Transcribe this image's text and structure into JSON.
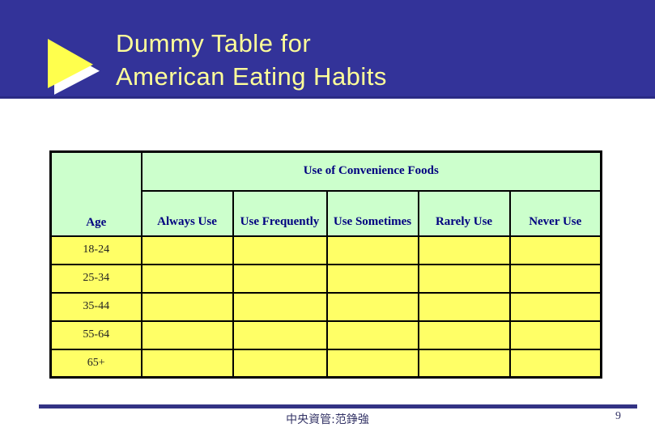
{
  "header": {
    "title_line1": "Dummy Table for",
    "title_line2": "American Eating Habits"
  },
  "table": {
    "span_header": "Use of Convenience Foods",
    "columns": [
      "Age",
      "Always Use",
      "Use Frequently",
      "Use Sometimes",
      "Rarely Use",
      "Never Use"
    ],
    "rows": [
      {
        "label": "18-24",
        "cells": [
          "",
          "",
          "",
          "",
          ""
        ]
      },
      {
        "label": "25-34",
        "cells": [
          "",
          "",
          "",
          "",
          ""
        ]
      },
      {
        "label": "35-44",
        "cells": [
          "",
          "",
          "",
          "",
          ""
        ]
      },
      {
        "label": "55-64",
        "cells": [
          "",
          "",
          "",
          "",
          ""
        ]
      },
      {
        "label": "65+",
        "cells": [
          "",
          "",
          "",
          "",
          ""
        ]
      }
    ]
  },
  "footer": {
    "credit": "中央資管:范錚強",
    "page_number": "9"
  },
  "icons": {
    "bullet": "triangle-right-icon"
  },
  "colors": {
    "band_blue": "#333399",
    "band_edge": "#2b2b85",
    "title_text": "#ffff99",
    "triangle_yellow": "#ffff4d",
    "triangle_shadow": "#ffffff",
    "header_green": "#ccffcc",
    "header_text_navy": "#000080",
    "cell_yellow": "#ffff66",
    "row_label_text": "#222222",
    "footer_navy": "#333384",
    "footer_text": "#333366",
    "table_border": "#000000"
  }
}
